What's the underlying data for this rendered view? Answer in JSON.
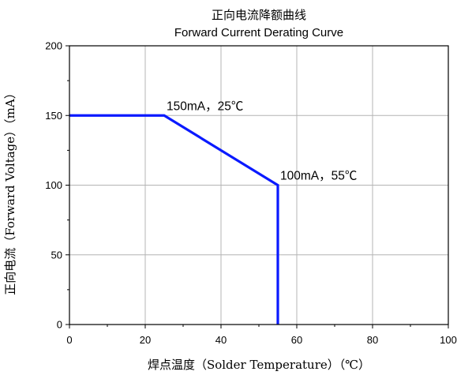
{
  "chart_data": {
    "type": "line",
    "title_cn": "正向电流降额曲线",
    "title_en": "Forward Current Derating Curve",
    "xlabel": "焊点温度（Solder Temperature）（℃）",
    "ylabel": "正向电流（Forward Voltage）（mA）",
    "xlim": [
      0,
      100
    ],
    "ylim": [
      0,
      200
    ],
    "x_ticks": [
      0,
      20,
      40,
      60,
      80,
      100
    ],
    "y_ticks": [
      0,
      50,
      100,
      150,
      200
    ],
    "grid": true,
    "line_color": "#0a1aff",
    "grid_color": "#b4b4b4",
    "series": [
      {
        "points": [
          {
            "x": 0,
            "y": 150
          },
          {
            "x": 25,
            "y": 150
          },
          {
            "x": 55,
            "y": 100
          },
          {
            "x": 55,
            "y": 0
          }
        ]
      }
    ],
    "annotations": [
      {
        "text": "150mA，25℃",
        "x": 25,
        "y": 150
      },
      {
        "text": "100mA，55℃",
        "x": 55,
        "y": 100
      }
    ]
  }
}
